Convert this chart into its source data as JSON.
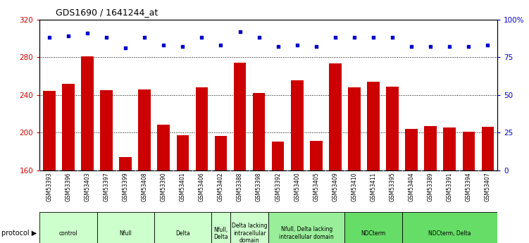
{
  "title": "GDS1690 / 1641244_at",
  "samples": [
    "GSM53393",
    "GSM53396",
    "GSM53403",
    "GSM53397",
    "GSM53399",
    "GSM53408",
    "GSM53390",
    "GSM53401",
    "GSM53406",
    "GSM53402",
    "GSM53388",
    "GSM53398",
    "GSM53392",
    "GSM53400",
    "GSM53405",
    "GSM53409",
    "GSM53410",
    "GSM53411",
    "GSM53395",
    "GSM53404",
    "GSM53389",
    "GSM53391",
    "GSM53394",
    "GSM53407"
  ],
  "counts": [
    244,
    252,
    281,
    245,
    174,
    246,
    208,
    197,
    248,
    196,
    274,
    242,
    190,
    255,
    191,
    273,
    248,
    254,
    249,
    204,
    207,
    205,
    201,
    206
  ],
  "percentiles": [
    88,
    89,
    91,
    88,
    81,
    88,
    83,
    82,
    88,
    83,
    92,
    88,
    82,
    83,
    82,
    88,
    88,
    88,
    88,
    82,
    82,
    82,
    82,
    83
  ],
  "ylim_left": [
    160,
    320
  ],
  "ylim_right": [
    0,
    100
  ],
  "yticks_left": [
    160,
    200,
    240,
    280,
    320
  ],
  "yticks_right": [
    0,
    25,
    50,
    75,
    100
  ],
  "ytick_right_labels": [
    "0",
    "25",
    "50",
    "75",
    "100%"
  ],
  "groups": [
    {
      "label": "control",
      "indices": [
        0,
        1,
        2
      ],
      "color": "#ccffcc"
    },
    {
      "label": "Nfull",
      "indices": [
        3,
        4,
        5
      ],
      "color": "#ccffcc"
    },
    {
      "label": "Delta",
      "indices": [
        6,
        7,
        8
      ],
      "color": "#ccffcc"
    },
    {
      "label": "Nfull,\nDelta",
      "indices": [
        9
      ],
      "color": "#ccffcc"
    },
    {
      "label": "Delta lacking\nintracellular\ndomain",
      "indices": [
        10,
        11
      ],
      "color": "#ccffcc"
    },
    {
      "label": "Nfull, Delta lacking\nintracellular domain",
      "indices": [
        12,
        13,
        14,
        15
      ],
      "color": "#99ee99"
    },
    {
      "label": "NDCterm",
      "indices": [
        16,
        17,
        18
      ],
      "color": "#66dd66"
    },
    {
      "label": "NDCterm, Delta",
      "indices": [
        19,
        20,
        21,
        22,
        23
      ],
      "color": "#66dd66"
    }
  ],
  "bar_color": "#cc0000",
  "percentile_color": "#0000cc",
  "bar_width": 0.65,
  "protocol_label": "protocol",
  "left_tick_color": "#cc0000",
  "right_tick_color": "#0000cc",
  "grid_color": "#000000",
  "sample_bg_color": "#cccccc"
}
